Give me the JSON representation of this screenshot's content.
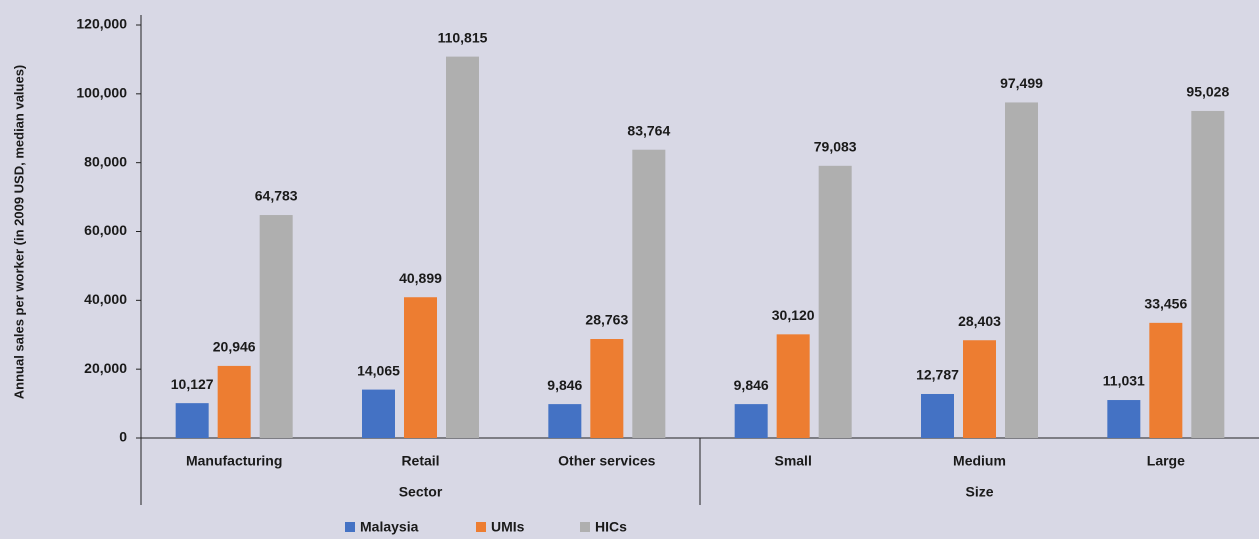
{
  "chart_data": {
    "type": "bar",
    "y_axis_label": "Annual sales per worker (in 2009 USD, median values)",
    "categories": [
      "Manufacturing",
      "Retail",
      "Other services",
      "Small",
      "Medium",
      "Large"
    ],
    "groups": [
      "Sector",
      "Size"
    ],
    "series": [
      {
        "name": "Malaysia",
        "color": "#4472c4",
        "values": [
          10127,
          14065,
          9846,
          9846,
          12787,
          11031
        ],
        "value_labels": [
          "10,127",
          "14,065",
          "9,846",
          "9,846",
          "12,787",
          "11,031"
        ]
      },
      {
        "name": "UMIs",
        "color": "#ed7d31",
        "values": [
          20946,
          40899,
          28763,
          30120,
          28403,
          33456
        ],
        "value_labels": [
          "20,946",
          "40,899",
          "28,763",
          "30,120",
          "28,403",
          "33,456"
        ]
      },
      {
        "name": "HICs",
        "color": "#afafaf",
        "values": [
          64783,
          110815,
          83764,
          79083,
          97499,
          95028
        ],
        "value_labels": [
          "64,783",
          "110,815",
          "83,764",
          "79,083",
          "97,499",
          "95,028"
        ]
      }
    ],
    "ylim": [
      0,
      120000
    ],
    "yticks": [
      0,
      {
        "value": 20000,
        "label": "20,000"
      },
      {
        "value": 40000,
        "label": "40,000"
      },
      {
        "value": 60000,
        "label": "60,000"
      },
      {
        "value": 80000,
        "label": "80,000"
      },
      {
        "value": 100000,
        "label": "100,000"
      },
      {
        "value": 120000,
        "label": "120,000"
      }
    ],
    "grid": false,
    "legend": "bottom"
  }
}
